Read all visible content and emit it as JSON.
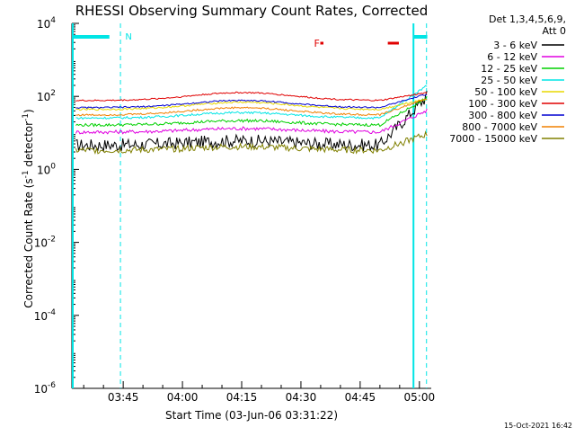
{
  "chart_data": {
    "type": "line",
    "title": "RHESSI Observing Summary Count Rates, Corrected",
    "xlabel": "Start Time (03-Jun-06 03:31:22)",
    "ylabel_main": "Corrected Count Rate (s",
    "ylabel_sup1": "-1",
    "ylabel_mid": " detector",
    "ylabel_sup2": "-1",
    "ylabel_end": ")",
    "y_scale": "log",
    "ylim_exp": [
      -6,
      4
    ],
    "xlim_min": [
      212,
      303
    ],
    "x_ticks": [
      {
        "label": "03:45",
        "min": 225
      },
      {
        "label": "04:00",
        "min": 240
      },
      {
        "label": "04:15",
        "min": 255
      },
      {
        "label": "04:30",
        "min": 270
      },
      {
        "label": "04:45",
        "min": 285
      },
      {
        "label": "05:00",
        "min": 300
      }
    ],
    "y_ticks": [
      {
        "base": "10",
        "exp": "4",
        "value": 4
      },
      {
        "base": "10",
        "exp": "2",
        "value": 2
      },
      {
        "base": "10",
        "exp": "0",
        "value": 0
      },
      {
        "base": "10",
        "exp": "-2",
        "value": -2
      },
      {
        "base": "10",
        "exp": "-4",
        "value": -4
      },
      {
        "base": "10",
        "exp": "-6",
        "value": -6
      }
    ],
    "legend_header": [
      "Det 1,3,4,5,6,9,",
      "Att 0"
    ],
    "legend_placement": "right",
    "series": [
      {
        "name": "3 - 6 keV",
        "color": "#000000"
      },
      {
        "name": "6 - 12 keV",
        "color": "#e000e0"
      },
      {
        "name": "12 - 25 keV",
        "color": "#00d000"
      },
      {
        "name": "25 - 50 keV",
        "color": "#00e5e5"
      },
      {
        "name": "50 - 100 keV",
        "color": "#e8d800"
      },
      {
        "name": "100 - 300 keV",
        "color": "#e00000"
      },
      {
        "name": "300 - 800 keV",
        "color": "#0000d0"
      },
      {
        "name": "800 - 7000 keV",
        "color": "#f08000"
      },
      {
        "name": "7000 - 15000 keV",
        "color": "#808000"
      }
    ],
    "annotations": {
      "n_label": "N",
      "f_label": "F"
    },
    "footer_date": "15-Oct-2021 16:42"
  }
}
